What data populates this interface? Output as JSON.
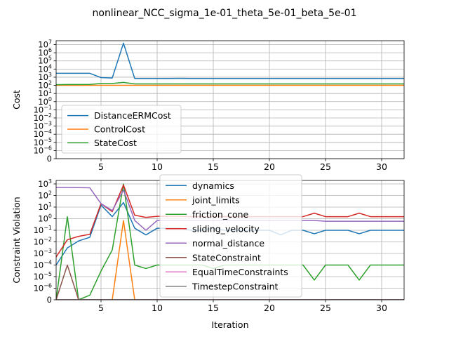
{
  "figure": {
    "title": "nonlinear_NCC_sigma_1e-01_theta_5e-01_beta_5e-01"
  },
  "chart_data": [
    {
      "type": "line",
      "scale": "symlog",
      "ylabel": "Cost",
      "xlabel": "",
      "xlim": [
        1,
        32
      ],
      "ylim": [
        0,
        30000000
      ],
      "grid": true,
      "legend_placement": "lower-left",
      "xticks": [
        5,
        10,
        15,
        20,
        25,
        30
      ],
      "xtick_labels": [
        "5",
        "10",
        "15",
        "20",
        "25",
        "30"
      ],
      "yticks": [
        0,
        1e-06,
        1e-05,
        0.0001,
        0.001,
        0.01,
        0.1,
        1,
        10,
        100,
        1000,
        10000,
        100000,
        1000000,
        10000000
      ],
      "ytick_labels": [
        {
          "base": "0",
          "exp": ""
        },
        {
          "base": "10",
          "exp": "−6"
        },
        {
          "base": "10",
          "exp": "−5"
        },
        {
          "base": "10",
          "exp": "−4"
        },
        {
          "base": "10",
          "exp": "−3"
        },
        {
          "base": "10",
          "exp": "−2"
        },
        {
          "base": "10",
          "exp": "−1"
        },
        {
          "base": "10",
          "exp": "0"
        },
        {
          "base": "10",
          "exp": "1"
        },
        {
          "base": "10",
          "exp": "2"
        },
        {
          "base": "10",
          "exp": "3"
        },
        {
          "base": "10",
          "exp": "4"
        },
        {
          "base": "10",
          "exp": "5"
        },
        {
          "base": "10",
          "exp": "6"
        },
        {
          "base": "10",
          "exp": "7"
        }
      ],
      "x": [
        1,
        2,
        3,
        4,
        5,
        6,
        7,
        8,
        9,
        10,
        11,
        12,
        13,
        14,
        15,
        16,
        17,
        18,
        19,
        20,
        21,
        22,
        23,
        24,
        25,
        26,
        27,
        28,
        29,
        30,
        31,
        32
      ],
      "series": [
        {
          "name": "DistanceERMCost",
          "color": "#1f77b4",
          "values": [
            3000,
            3000,
            3000,
            3000,
            900,
            800,
            15000000,
            700,
            700,
            700,
            700,
            720,
            700,
            700,
            700,
            700,
            700,
            700,
            700,
            700,
            700,
            700,
            700,
            700,
            700,
            700,
            700,
            700,
            700,
            700,
            700,
            700
          ]
        },
        {
          "name": "ControlCost",
          "color": "#ff7f0e",
          "values": [
            100,
            100,
            100,
            100,
            100,
            100,
            100,
            100,
            100,
            100,
            100,
            100,
            100,
            100,
            100,
            100,
            100,
            100,
            100,
            100,
            100,
            100,
            100,
            100,
            100,
            100,
            100,
            100,
            100,
            100,
            100,
            100
          ]
        },
        {
          "name": "StateCost",
          "color": "#2ca02c",
          "values": [
            120,
            125,
            125,
            130,
            170,
            170,
            230,
            150,
            150,
            150,
            150,
            150,
            150,
            150,
            150,
            150,
            150,
            150,
            150,
            150,
            150,
            150,
            150,
            150,
            150,
            150,
            150,
            150,
            150,
            150,
            150,
            150
          ]
        }
      ]
    },
    {
      "type": "line",
      "scale": "symlog",
      "ylabel": "Constraint Violation",
      "xlabel": "Iteration",
      "xlim": [
        1,
        32
      ],
      "ylim": [
        0,
        2000
      ],
      "grid": true,
      "legend_placement": "top-center",
      "xticks": [
        5,
        10,
        15,
        20,
        25,
        30
      ],
      "xtick_labels": [
        "5",
        "10",
        "15",
        "20",
        "25",
        "30"
      ],
      "yticks": [
        0,
        1e-06,
        1e-05,
        0.0001,
        0.001,
        0.01,
        0.1,
        1,
        10,
        100,
        1000
      ],
      "ytick_labels": [
        {
          "base": "0",
          "exp": ""
        },
        {
          "base": "10",
          "exp": "−6"
        },
        {
          "base": "10",
          "exp": "−5"
        },
        {
          "base": "10",
          "exp": "−4"
        },
        {
          "base": "10",
          "exp": "−3"
        },
        {
          "base": "10",
          "exp": "−2"
        },
        {
          "base": "10",
          "exp": "−1"
        },
        {
          "base": "10",
          "exp": "0"
        },
        {
          "base": "10",
          "exp": "1"
        },
        {
          "base": "10",
          "exp": "2"
        },
        {
          "base": "10",
          "exp": "3"
        }
      ],
      "x": [
        1,
        2,
        3,
        4,
        5,
        6,
        7,
        8,
        9,
        10,
        11,
        12,
        13,
        14,
        15,
        16,
        17,
        18,
        19,
        20,
        21,
        22,
        23,
        24,
        25,
        26,
        27,
        28,
        29,
        30,
        31,
        32
      ],
      "series": [
        {
          "name": "dynamics",
          "color": "#1f77b4",
          "values": [
            0.0001,
            0.003,
            0.012,
            0.025,
            15,
            1.5,
            25,
            0.15,
            0.04,
            0.15,
            0.15,
            0.15,
            0.1,
            0.1,
            0.15,
            0.1,
            0.1,
            0.1,
            0.1,
            0.1,
            0.04,
            0.1,
            0.1,
            0.05,
            0.1,
            0.1,
            0.1,
            0.05,
            0.1,
            0.1,
            0.1,
            0.1
          ]
        },
        {
          "name": "joint_limits",
          "color": "#ff7f0e",
          "values": [
            0,
            0,
            0,
            0,
            0,
            0,
            0.7,
            0,
            0,
            0,
            0,
            0,
            0,
            0,
            0,
            0,
            0,
            0,
            0,
            0,
            0,
            0,
            0,
            0,
            0,
            0,
            0,
            0,
            0,
            0,
            0,
            0
          ]
        },
        {
          "name": "friction_cone",
          "color": "#2ca02c",
          "values": [
            0,
            1.5,
            0,
            4e-07,
            3e-05,
            0.002,
            1000,
            0.0001,
            5e-05,
            0.0001,
            0.0001,
            0.0001,
            0.0001,
            0.0001,
            5e-05,
            0.0001,
            0.0001,
            0.0001,
            0.0001,
            0.0001,
            0.0001,
            0.0001,
            0.0001,
            5e-06,
            0.0001,
            0.0001,
            0.0001,
            5e-06,
            0.0001,
            0.0001,
            0.0001,
            0.0001
          ]
        },
        {
          "name": "sliding_velocity",
          "color": "#d62728",
          "values": [
            0.0005,
            0.015,
            0.03,
            0.045,
            20,
            4,
            800,
            2,
            1.3,
            1.6,
            1.6,
            1.6,
            1.5,
            1.5,
            1.5,
            1.5,
            1.5,
            1.5,
            1.5,
            1.5,
            1.5,
            1.5,
            1.5,
            3,
            1.5,
            1.5,
            1.5,
            3,
            1.5,
            1.5,
            1.5,
            1.5
          ]
        },
        {
          "name": "normal_distance",
          "color": "#9467bd",
          "values": [
            500,
            500,
            480,
            460,
            20,
            5,
            300,
            0.7,
            0.1,
            0.7,
            0.7,
            0.7,
            0.7,
            0.7,
            0.7,
            0.7,
            0.7,
            0.7,
            0.7,
            0.7,
            0.7,
            0.7,
            0.7,
            0.7,
            0.6,
            0.6,
            0.6,
            0.6,
            0.6,
            0.6,
            0.6,
            0.6
          ]
        },
        {
          "name": "StateConstraint",
          "color": "#8c564b",
          "values": [
            0,
            0.0001,
            0,
            0,
            0,
            0,
            0,
            0,
            0,
            0,
            0,
            0,
            0,
            0,
            0,
            0,
            0,
            0,
            0,
            0,
            0,
            0,
            0,
            0,
            0,
            0,
            0,
            0,
            0,
            0,
            0,
            0
          ]
        },
        {
          "name": "EqualTimeConstraints",
          "color": "#e377c2",
          "values": [
            0,
            0,
            0,
            0,
            0,
            0,
            0,
            0,
            0,
            0,
            0,
            0,
            0,
            0,
            0,
            0,
            0,
            0,
            0,
            0,
            0,
            0,
            0,
            0,
            0,
            0,
            0,
            0,
            0,
            0,
            0,
            0
          ]
        },
        {
          "name": "TimestepConstraint",
          "color": "#7f7f7f",
          "values": [
            0,
            0,
            0,
            0,
            0,
            0,
            0,
            0,
            0,
            0,
            0,
            0,
            0,
            0,
            0,
            0,
            0,
            0,
            0,
            0,
            0,
            0,
            0,
            0,
            0,
            0,
            0,
            0,
            0,
            0,
            0,
            0
          ]
        }
      ]
    }
  ]
}
